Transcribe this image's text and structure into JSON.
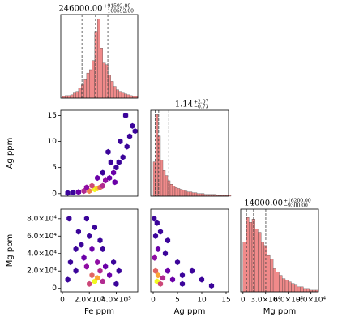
{
  "chart_data": [
    {
      "type": "histogram",
      "title": "246000.00",
      "title_upper": "+91592.00",
      "title_lower": "−100592.00",
      "bins": [
        0,
        20000,
        40000,
        60000,
        80000,
        100000,
        120000,
        140000,
        160000,
        180000,
        200000,
        220000,
        240000,
        260000,
        280000,
        300000,
        320000,
        340000,
        360000,
        380000,
        400000,
        420000,
        440000,
        460000,
        480000,
        500000,
        520000,
        540000,
        560000
      ],
      "counts": [
        2,
        3,
        3,
        4,
        6,
        8,
        12,
        16,
        22,
        30,
        34,
        45,
        80,
        95,
        60,
        42,
        40,
        28,
        20,
        14,
        10,
        8,
        6,
        5,
        4,
        3,
        2,
        2
      ],
      "quantiles": [
        145408,
        246000,
        337592
      ],
      "xlim": [
        -12000,
        560000
      ],
      "ylim": [
        0,
        100
      ],
      "color": "#f08a8a"
    },
    {
      "type": "hexbin",
      "xlim": [
        -12000,
        560000
      ],
      "ylim": [
        -0.5,
        16
      ],
      "ylabel": "Ag ppm",
      "yticks": [
        0,
        5,
        10,
        15
      ],
      "x": [
        120000,
        160000,
        200000,
        240000,
        260000,
        280000,
        300000,
        220000,
        180000,
        320000,
        350000,
        380000,
        400000,
        420000,
        450000,
        480000,
        500000,
        520000,
        430000,
        360000,
        300000,
        260000,
        80000,
        40000,
        470000,
        540000,
        340000,
        390000
      ],
      "y": [
        0.3,
        0.5,
        0.5,
        0.8,
        1,
        1.2,
        1.5,
        1.5,
        1.2,
        2.5,
        3,
        4,
        5,
        6,
        7,
        9,
        11,
        13,
        10,
        6,
        4,
        3,
        0.2,
        0.1,
        15,
        12,
        8,
        2.2
      ],
      "values": [
        2,
        4,
        7,
        10,
        9,
        6,
        4,
        5,
        3,
        3,
        2,
        2,
        1,
        1,
        1,
        1,
        1,
        1,
        1,
        1,
        1,
        2,
        1,
        1,
        1,
        1,
        1,
        2
      ],
      "colormap": [
        "#0d0887",
        "#3b049a",
        "#6a00a8",
        "#900da4",
        "#b12a90",
        "#cc4778",
        "#e16462",
        "#f2844b",
        "#fca636",
        "#fcce25",
        "#f0f921"
      ]
    },
    {
      "type": "histogram",
      "title": "1.14",
      "title_upper": "+2.07",
      "title_lower": "−0.73",
      "bins": [
        0,
        0.5,
        1,
        1.5,
        2,
        2.5,
        3,
        3.5,
        4,
        4.5,
        5,
        5.5,
        6,
        6.5,
        7,
        7.5,
        8,
        8.5,
        9,
        9.5,
        10,
        10.5,
        11,
        11.5,
        12,
        12.5,
        13,
        13.5,
        14,
        14.5,
        15,
        15.5,
        16
      ],
      "counts": [
        40,
        95,
        70,
        42,
        30,
        24,
        18,
        14,
        12,
        10,
        9,
        8,
        7,
        6,
        5,
        5,
        4,
        4,
        3,
        3,
        3,
        2,
        2,
        2,
        2,
        2,
        1,
        1,
        1,
        1,
        1,
        1
      ],
      "quantiles": [
        0.41,
        1.14,
        3.21
      ],
      "xlim": [
        -0.5,
        15.5
      ],
      "ylim": [
        0,
        100
      ],
      "color": "#f08a8a"
    },
    {
      "type": "hexbin",
      "xlim": [
        -12000,
        560000
      ],
      "ylim": [
        -4000,
        91000
      ],
      "xlabel": "Fe ppm",
      "ylabel": "Mg ppm",
      "xticks": [
        0,
        {
          "value": 200000,
          "label": "2.0×10⁵"
        },
        {
          "value": 400000,
          "label": "4.0×10⁵"
        }
      ],
      "yticks": [
        0,
        {
          "value": 20000,
          "label": "2.0×10⁴"
        },
        {
          "value": 40000,
          "label": "4.0×10⁴"
        },
        {
          "value": 60000,
          "label": "6.0×10⁴"
        },
        {
          "value": 80000,
          "label": "8.0×10⁴"
        }
      ],
      "x": [
        240000,
        260000,
        220000,
        200000,
        280000,
        300000,
        180000,
        160000,
        260000,
        320000,
        140000,
        200000,
        240000,
        180000,
        120000,
        300000,
        350000,
        380000,
        100000,
        60000,
        40000,
        420000,
        400000,
        280000,
        220000,
        100000,
        50000
      ],
      "y": [
        8000,
        12000,
        15000,
        5000,
        20000,
        8000,
        25000,
        35000,
        30000,
        25000,
        50000,
        60000,
        70000,
        80000,
        65000,
        45000,
        15000,
        30000,
        20000,
        30000,
        10000,
        20000,
        5000,
        55000,
        45000,
        45000,
        80000
      ],
      "values": [
        10,
        8,
        6,
        5,
        4,
        4,
        3,
        2,
        3,
        2,
        1,
        1,
        1,
        1,
        1,
        1,
        2,
        1,
        1,
        1,
        1,
        1,
        1,
        1,
        2,
        1,
        1
      ],
      "colormap": [
        "#0d0887",
        "#3b049a",
        "#6a00a8",
        "#900da4",
        "#b12a90",
        "#cc4778",
        "#e16462",
        "#f2844b",
        "#fca636",
        "#fcce25",
        "#f0f921"
      ]
    },
    {
      "type": "hexbin",
      "xlim": [
        -0.5,
        15.5
      ],
      "ylim": [
        -4000,
        91000
      ],
      "xlabel": "Ag ppm",
      "xticks": [
        0,
        5,
        10,
        15
      ],
      "x": [
        0.8,
        1,
        0.5,
        1.5,
        2,
        0.3,
        1,
        0.5,
        0.8,
        3,
        4,
        5,
        6,
        8,
        10,
        2.5,
        1.5,
        3,
        0.2,
        6,
        12
      ],
      "y": [
        8000,
        15000,
        20000,
        5000,
        12000,
        35000,
        45000,
        60000,
        75000,
        20000,
        10000,
        30000,
        15000,
        20000,
        10000,
        40000,
        65000,
        55000,
        80000,
        5000,
        3000
      ],
      "values": [
        10,
        8,
        6,
        5,
        4,
        3,
        2,
        1,
        1,
        2,
        2,
        1,
        1,
        1,
        1,
        1,
        1,
        1,
        1,
        1,
        1
      ],
      "colormap": [
        "#0d0887",
        "#3b049a",
        "#6a00a8",
        "#900da4",
        "#b12a90",
        "#cc4778",
        "#e16462",
        "#f2844b",
        "#fca636",
        "#fcce25",
        "#f0f921"
      ]
    },
    {
      "type": "histogram",
      "title": "14000.00",
      "title_upper": "+16200.00",
      "title_lower": "−9300.00",
      "xlabel": "Mg ppm",
      "bins": [
        0,
        4000,
        8000,
        12000,
        16000,
        20000,
        24000,
        28000,
        32000,
        36000,
        40000,
        44000,
        48000,
        52000,
        56000,
        60000,
        64000,
        68000,
        72000,
        76000,
        80000,
        84000,
        88000,
        92000,
        96000,
        100000
      ],
      "counts": [
        30,
        45,
        42,
        44,
        38,
        36,
        30,
        28,
        22,
        20,
        14,
        12,
        10,
        8,
        7,
        6,
        5,
        4,
        3,
        3,
        2,
        2,
        1,
        1,
        1
      ],
      "quantiles": [
        4700,
        14000,
        30200
      ],
      "xlim": [
        -3000,
        100000
      ],
      "ylim": [
        0,
        50
      ],
      "xticks": [
        0,
        {
          "value": 30000,
          "label": "3.0×10⁴"
        },
        {
          "value": 60000,
          "label": "6.0×10⁴"
        },
        {
          "value": 90000,
          "label": "9.0×10⁴"
        }
      ],
      "color": "#f08a8a"
    }
  ]
}
